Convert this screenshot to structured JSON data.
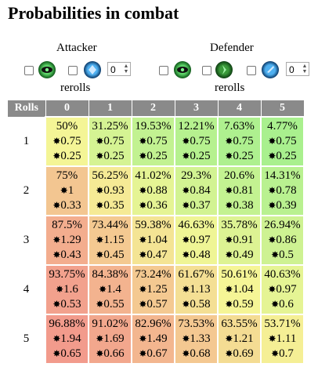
{
  "page": {
    "title": "Probabilities in combat"
  },
  "attacker": {
    "label": "Attacker",
    "reroll_value": "0",
    "rerolls_label": "rerolls"
  },
  "defender": {
    "label": "Defender",
    "reroll_value": "0",
    "rerolls_label": "rerolls"
  },
  "table": {
    "corner": "Rolls",
    "columns": [
      "0",
      "1",
      "2",
      "3",
      "4",
      "5"
    ],
    "rows": [
      {
        "label": "1",
        "cells": [
          {
            "p": "50%",
            "a": "0.75",
            "b": "0.25"
          },
          {
            "p": "31.25%",
            "a": "0.75",
            "b": "0.25"
          },
          {
            "p": "19.53%",
            "a": "0.75",
            "b": "0.25"
          },
          {
            "p": "12.21%",
            "a": "0.75",
            "b": "0.25"
          },
          {
            "p": "7.63%",
            "a": "0.75",
            "b": "0.25"
          },
          {
            "p": "4.77%",
            "a": "0.75",
            "b": "0.25"
          }
        ]
      },
      {
        "label": "2",
        "cells": [
          {
            "p": "75%",
            "a": "1",
            "b": "0.33"
          },
          {
            "p": "56.25%",
            "a": "0.93",
            "b": "0.35"
          },
          {
            "p": "41.02%",
            "a": "0.88",
            "b": "0.36"
          },
          {
            "p": "29.3%",
            "a": "0.84",
            "b": "0.37"
          },
          {
            "p": "20.6%",
            "a": "0.81",
            "b": "0.38"
          },
          {
            "p": "14.31%",
            "a": "0.78",
            "b": "0.39"
          }
        ]
      },
      {
        "label": "3",
        "cells": [
          {
            "p": "87.5%",
            "a": "1.29",
            "b": "0.43"
          },
          {
            "p": "73.44%",
            "a": "1.15",
            "b": "0.45"
          },
          {
            "p": "59.38%",
            "a": "1.04",
            "b": "0.47"
          },
          {
            "p": "46.63%",
            "a": "0.97",
            "b": "0.48"
          },
          {
            "p": "35.78%",
            "a": "0.91",
            "b": "0.49"
          },
          {
            "p": "26.94%",
            "a": "0.86",
            "b": "0.5"
          }
        ]
      },
      {
        "label": "4",
        "cells": [
          {
            "p": "93.75%",
            "a": "1.6",
            "b": "0.53"
          },
          {
            "p": "84.38%",
            "a": "1.4",
            "b": "0.55"
          },
          {
            "p": "73.24%",
            "a": "1.25",
            "b": "0.57"
          },
          {
            "p": "61.67%",
            "a": "1.13",
            "b": "0.58"
          },
          {
            "p": "50.61%",
            "a": "1.04",
            "b": "0.59"
          },
          {
            "p": "40.63%",
            "a": "0.97",
            "b": "0.6"
          }
        ]
      },
      {
        "label": "5",
        "cells": [
          {
            "p": "96.88%",
            "a": "1.94",
            "b": "0.65"
          },
          {
            "p": "91.02%",
            "a": "1.69",
            "b": "0.66"
          },
          {
            "p": "82.96%",
            "a": "1.49",
            "b": "0.67"
          },
          {
            "p": "73.53%",
            "a": "1.33",
            "b": "0.68"
          },
          {
            "p": "63.55%",
            "a": "1.21",
            "b": "0.69"
          },
          {
            "p": "53.71%",
            "a": "1.11",
            "b": "0.7"
          }
        ]
      }
    ]
  },
  "icons": {
    "star_glyph": "✸",
    "eye_color": "#1f8a2f",
    "defend_color": "#1a6fb0"
  }
}
